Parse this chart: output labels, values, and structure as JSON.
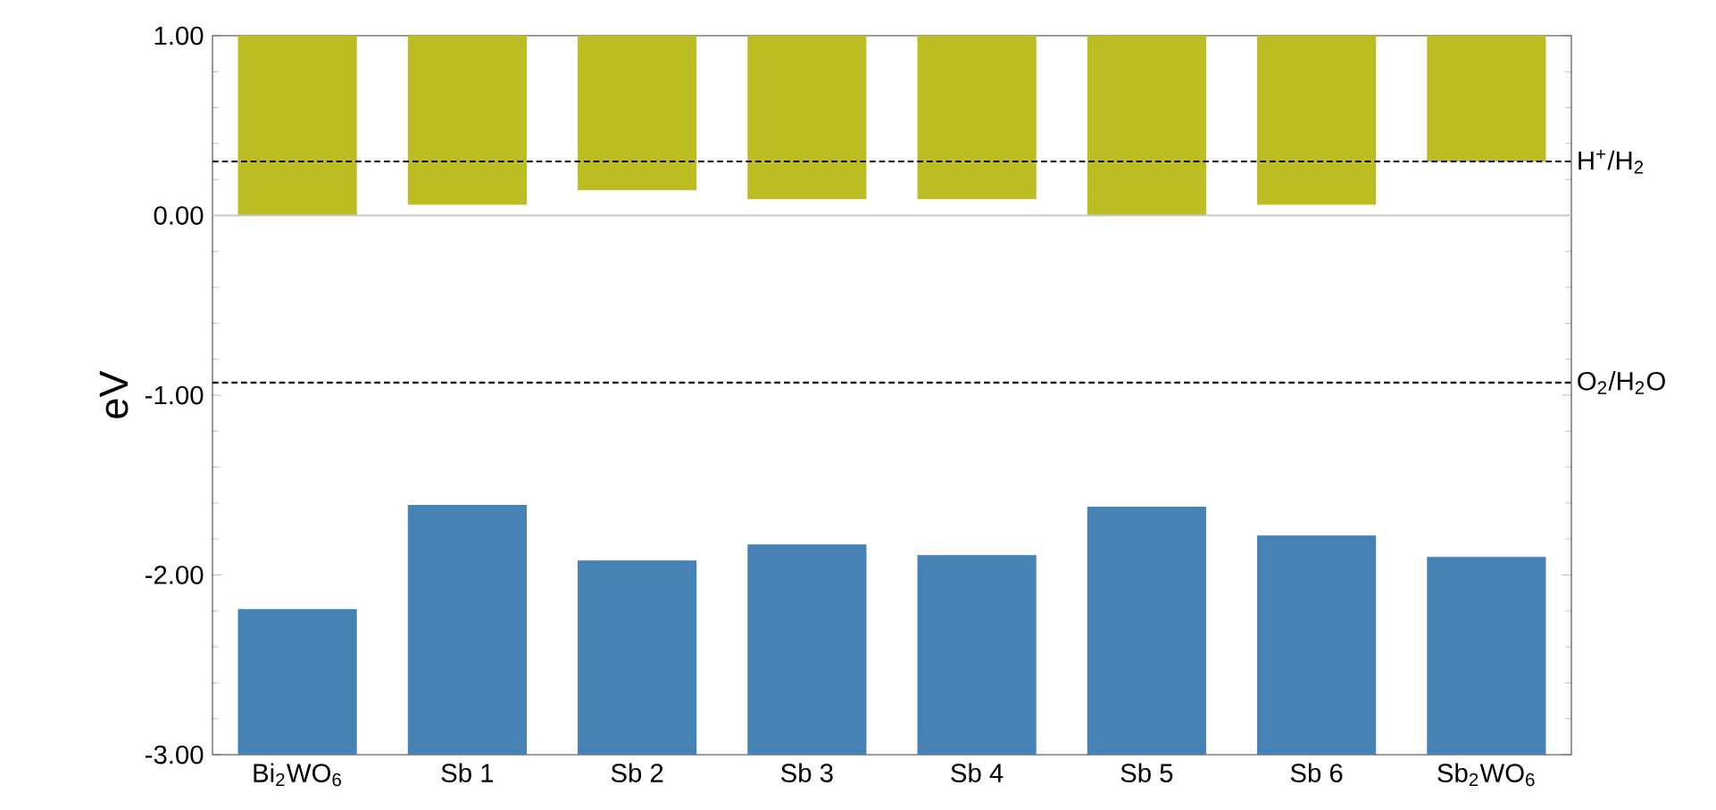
{
  "chart_data": {
    "type": "bar",
    "ylabel": "eV",
    "categories": [
      "Bi$_{2}$WO$_{6}$",
      "Sb 1",
      "Sb 2",
      "Sb 3",
      "Sb 4",
      "Sb 5",
      "Sb 6",
      "Sb$_{2}$WO$_{6}$"
    ],
    "series": [
      {
        "color": "#bcbd22",
        "base": [
          1,
          1,
          1,
          1,
          1,
          1,
          1,
          1
        ],
        "values": [
          -1.0,
          -0.94,
          -0.86,
          -0.91,
          -0.91,
          -1.0,
          -0.94,
          -0.7
        ]
      },
      {
        "color": "#4682b4",
        "base": [
          -3,
          -3,
          -3,
          -3,
          -3,
          -3,
          -3,
          -3
        ],
        "values": [
          0.81,
          1.39,
          1.08,
          1.17,
          1.11,
          1.38,
          1.22,
          1.1
        ]
      }
    ],
    "ylim": [
      -3,
      1
    ],
    "yticks": [
      {
        "value": 1,
        "label": "1.00"
      },
      {
        "value": 0,
        "label": "0.00"
      },
      {
        "value": -1,
        "label": "-1.00"
      },
      {
        "value": -2,
        "label": "-2.00"
      },
      {
        "value": -3,
        "label": "-3.00"
      }
    ],
    "ref_lines": [
      {
        "axis": "y",
        "value": 0,
        "color": "#c8c8c8",
        "line_style": "solid"
      },
      {
        "axis": "y",
        "value": 0.3,
        "label": "H$^{+}$/H$_{2}$",
        "color": "#000000",
        "line_style": "dashed"
      },
      {
        "axis": "y",
        "value": -0.93,
        "label": "O$_{2}$/H$_{2}$O",
        "color": "#000000",
        "line_style": "dashed"
      }
    ]
  }
}
